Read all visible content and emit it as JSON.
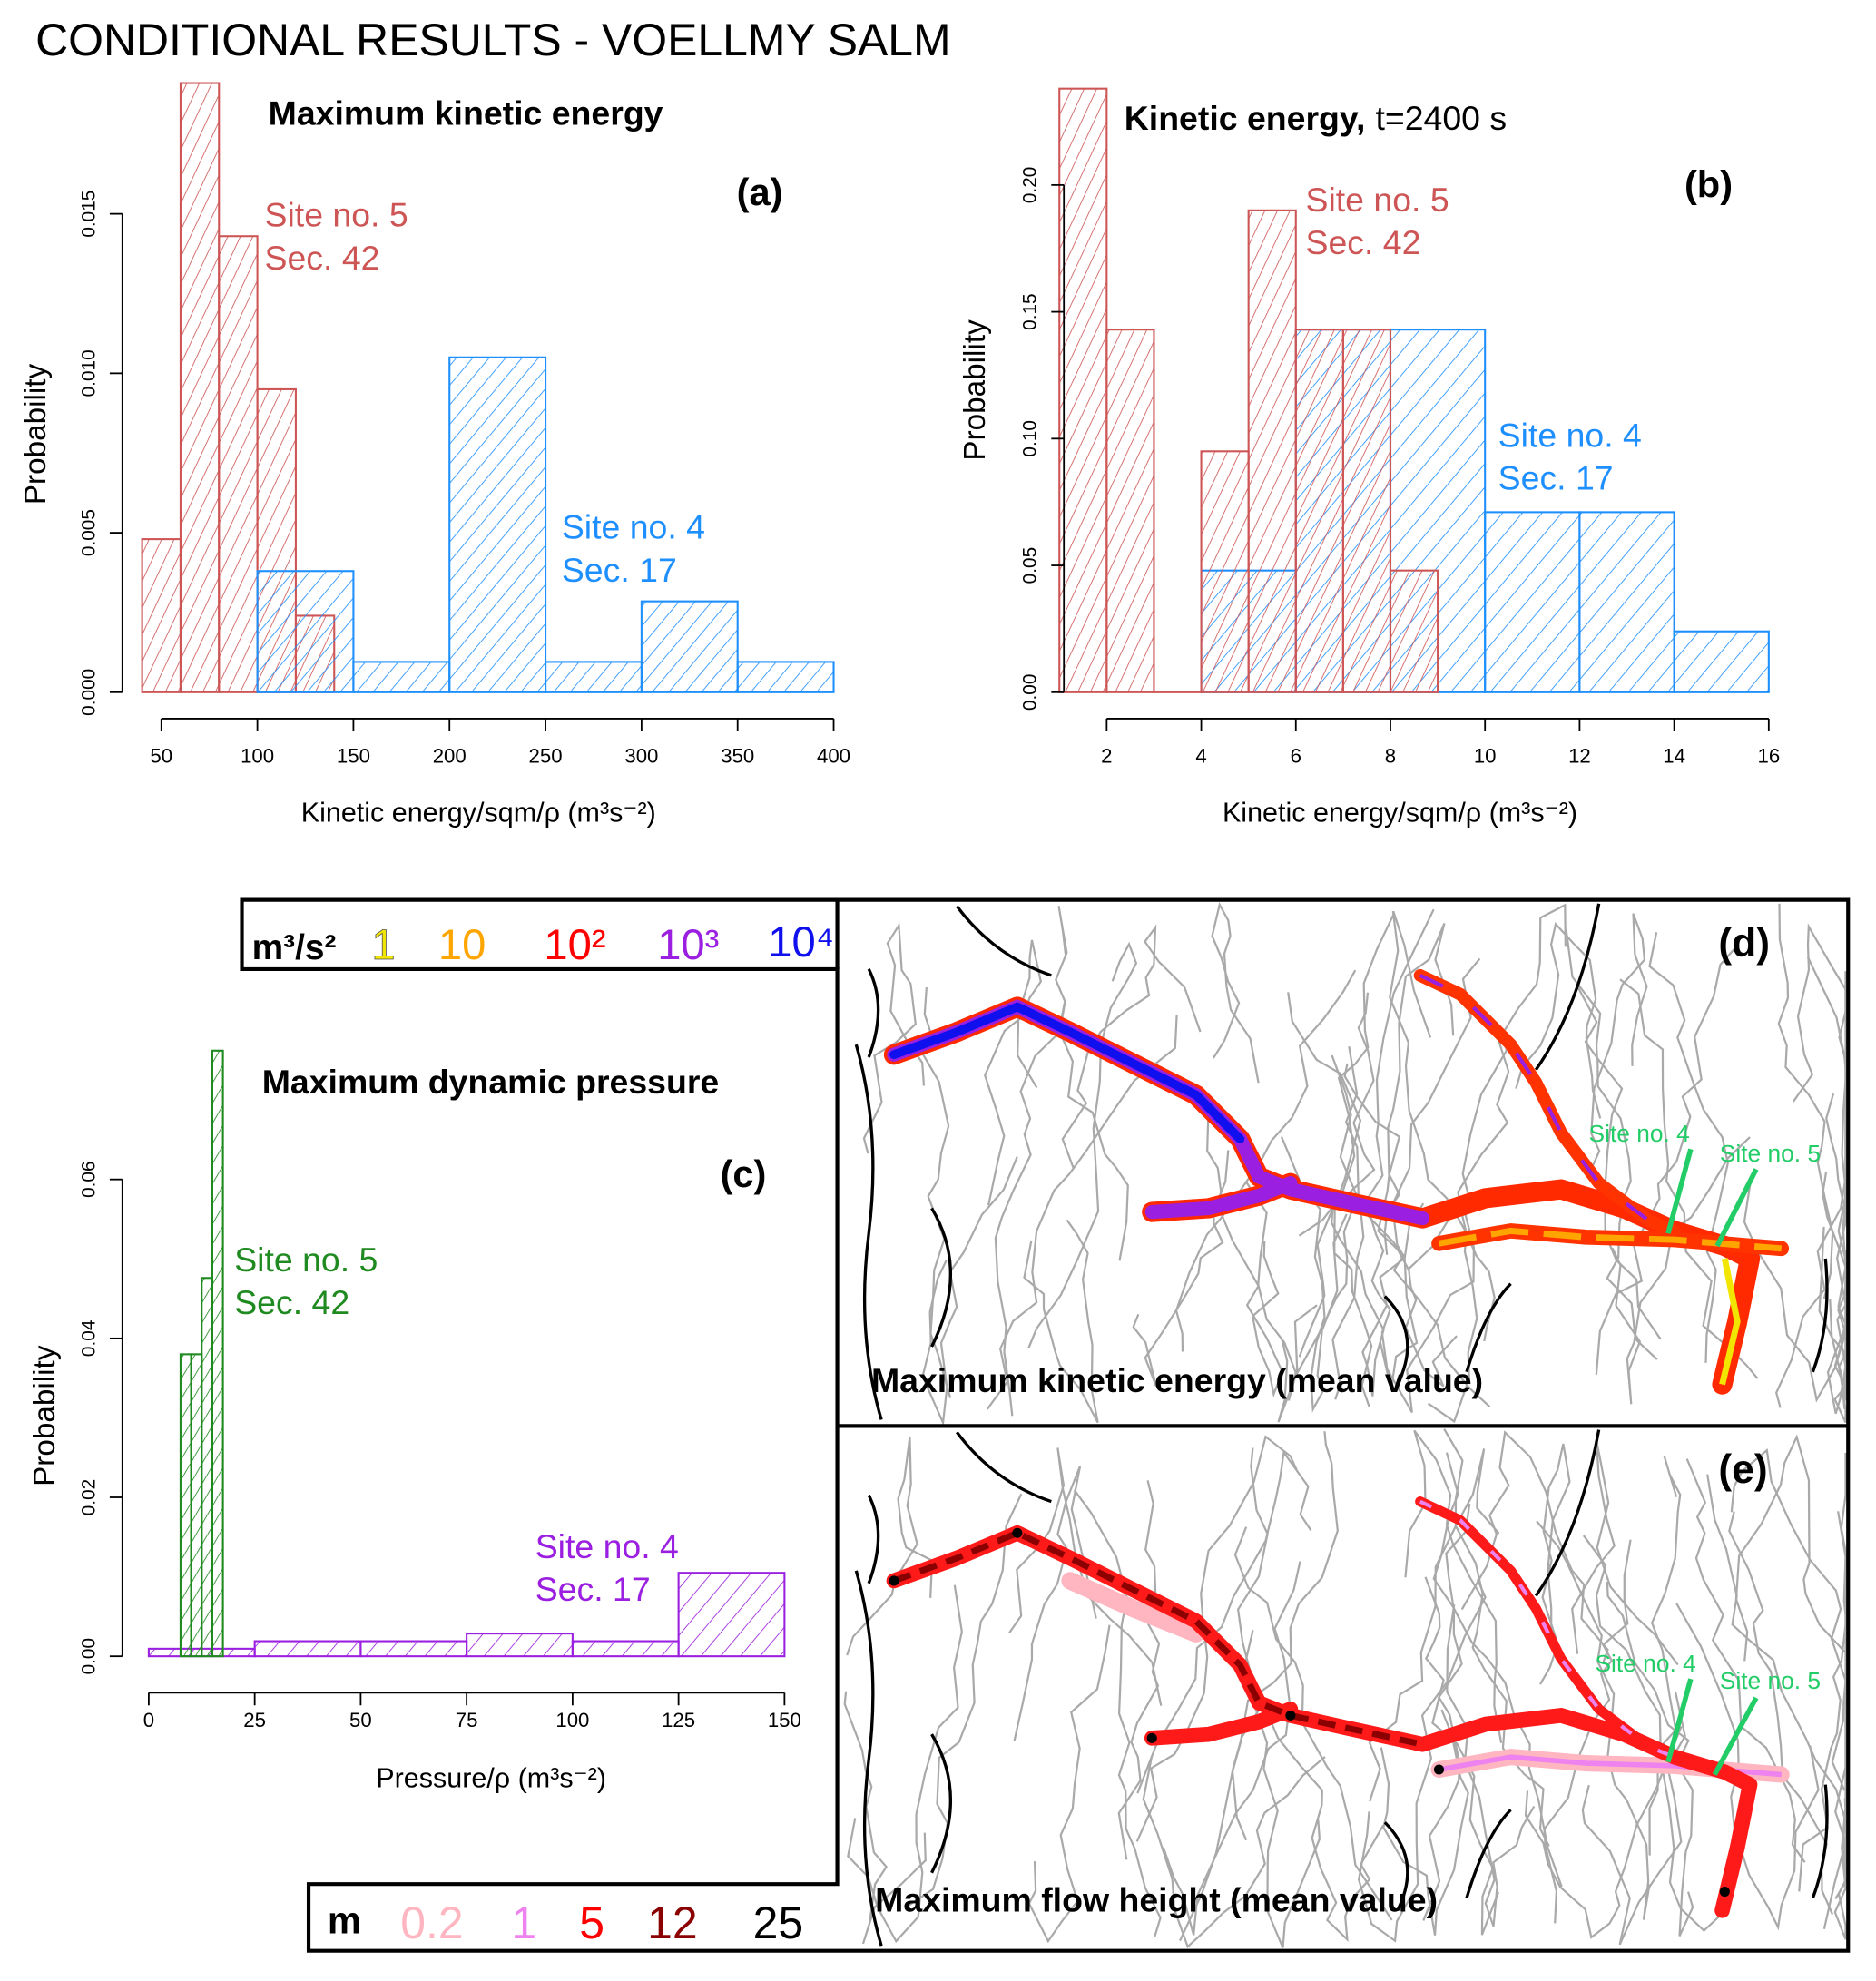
{
  "title": "CONDITIONAL RESULTS - VOELLMY SALM",
  "chart_data": [
    {
      "id": "a",
      "type": "bar",
      "title": "Maximum kinetic energy",
      "panel_label": "(a)",
      "xlabel": "Kinetic energy/sqm/ρ (m³s⁻²)",
      "ylabel": "Probability",
      "xticks": [
        "50",
        "100",
        "150",
        "200",
        "250",
        "300",
        "350",
        "400"
      ],
      "yticks": [
        "0.000",
        "0.005",
        "0.010",
        "0.015"
      ],
      "xlim": [
        40,
        400
      ],
      "ylim": [
        0,
        0.0191
      ],
      "series": [
        {
          "name": "Site no. 5 Sec. 42",
          "label_lines": [
            "Site no. 5",
            "Sec. 42"
          ],
          "color": "#cd5555",
          "bins": [
            [
              40,
              60,
              0.0048
            ],
            [
              60,
              80,
              0.0191
            ],
            [
              80,
              100,
              0.0143
            ],
            [
              100,
              120,
              0.0095
            ],
            [
              120,
              140,
              0.0024
            ]
          ]
        },
        {
          "name": "Site no. 4 Sec. 17",
          "label_lines": [
            "Site no. 4",
            "Sec. 17"
          ],
          "color": "#1e8fff",
          "bins": [
            [
              100,
              150,
              0.0038
            ],
            [
              150,
              200,
              0.00095
            ],
            [
              200,
              250,
              0.0105
            ],
            [
              250,
              300,
              0.00095
            ],
            [
              300,
              350,
              0.00285
            ],
            [
              350,
              400,
              0.00095
            ]
          ]
        }
      ]
    },
    {
      "id": "b",
      "type": "bar",
      "title": "Kinetic energy,",
      "title_suffix": "t=2400 s",
      "panel_label": "(b)",
      "xlabel": "Kinetic energy/sqm/ρ (m³s⁻²)",
      "ylabel": "Probability",
      "xticks": [
        "2",
        "4",
        "6",
        "8",
        "10",
        "12",
        "14",
        "16"
      ],
      "yticks": [
        "0.00",
        "0.05",
        "0.10",
        "0.15",
        "0.20"
      ],
      "xlim": [
        1,
        16
      ],
      "ylim": [
        0,
        0.238
      ],
      "series": [
        {
          "name": "Site no. 4 Sec. 17",
          "label_lines": [
            "Site no. 4",
            "Sec. 17"
          ],
          "color": "#1e8fff",
          "bins": [
            [
              4,
              6,
              0.048
            ],
            [
              6,
              8,
              0.143
            ],
            [
              8,
              10,
              0.143
            ],
            [
              10,
              12,
              0.071
            ],
            [
              12,
              14,
              0.071
            ],
            [
              14,
              16,
              0.024
            ]
          ]
        },
        {
          "name": "Site no. 5 Sec. 42",
          "label_lines": [
            "Site no. 5",
            "Sec. 42"
          ],
          "color": "#cd5555",
          "bins": [
            [
              1,
              2,
              0.238
            ],
            [
              2,
              3,
              0.143
            ],
            [
              3,
              4,
              0
            ],
            [
              4,
              5,
              0.095
            ],
            [
              5,
              6,
              0.19
            ],
            [
              6,
              7,
              0.143
            ],
            [
              7,
              8,
              0.143
            ],
            [
              8,
              9,
              0.048
            ]
          ]
        }
      ]
    },
    {
      "id": "c",
      "type": "bar",
      "title": "Maximum dynamic pressure",
      "panel_label": "(c)",
      "xlabel": "Pressure/ρ  (m³s⁻²)",
      "ylabel": "Probability",
      "xticks": [
        "0",
        "25",
        "50",
        "75",
        "100",
        "125",
        "150"
      ],
      "yticks": [
        "0.00",
        "0.02",
        "0.04",
        "0.06"
      ],
      "xlim": [
        0,
        150
      ],
      "ylim": [
        0,
        0.0762
      ],
      "series": [
        {
          "name": "Site no. 4 Sec. 17",
          "label_lines": [
            "Site no. 4",
            "Sec. 17"
          ],
          "color": "#9b1fe0",
          "bins": [
            [
              0,
              25,
              0.00095
            ],
            [
              25,
              50,
              0.0019
            ],
            [
              50,
              75,
              0.0019
            ],
            [
              75,
              100,
              0.00286
            ],
            [
              100,
              125,
              0.0019
            ],
            [
              125,
              150,
              0.0105
            ]
          ]
        },
        {
          "name": "Site no. 5 Sec. 42",
          "label_lines": [
            "Site no. 5",
            "Sec. 42"
          ],
          "color": "#1f8a1f",
          "bins": [
            [
              7.5,
              10,
              0.038
            ],
            [
              10,
              12.5,
              0.038
            ],
            [
              12.5,
              15,
              0.0476
            ],
            [
              15,
              17.5,
              0.0762
            ]
          ]
        }
      ]
    }
  ],
  "maps": {
    "energy_legend": {
      "unit": "m³/s²",
      "items": [
        {
          "label": "1",
          "color": "#f2e600"
        },
        {
          "label": "10",
          "color": "#ffa500"
        },
        {
          "label": "10²",
          "color": "#ff0000"
        },
        {
          "label": "10³",
          "color": "#9b1fe0"
        },
        {
          "label": "10⁴",
          "color": "#1010ee"
        }
      ]
    },
    "height_legend": {
      "unit": "m",
      "items": [
        {
          "label": "0.2",
          "color": "#ffb6c1"
        },
        {
          "label": "1",
          "color": "#ee82ee"
        },
        {
          "label": "5",
          "color": "#ff0000"
        },
        {
          "label": "12",
          "color": "#8b0000"
        },
        {
          "label": "25",
          "color": "#000000"
        }
      ]
    },
    "d": {
      "panel_label": "(d)",
      "caption": "Maximum kinetic energy (mean value)",
      "site4": "Site no. 4",
      "site5": "Site no. 5"
    },
    "e": {
      "panel_label": "(e)",
      "caption": "Maximum flow height (mean value)",
      "site4": "Site no. 4",
      "site5": "Site no. 5"
    },
    "site_color": "#22cc66"
  }
}
